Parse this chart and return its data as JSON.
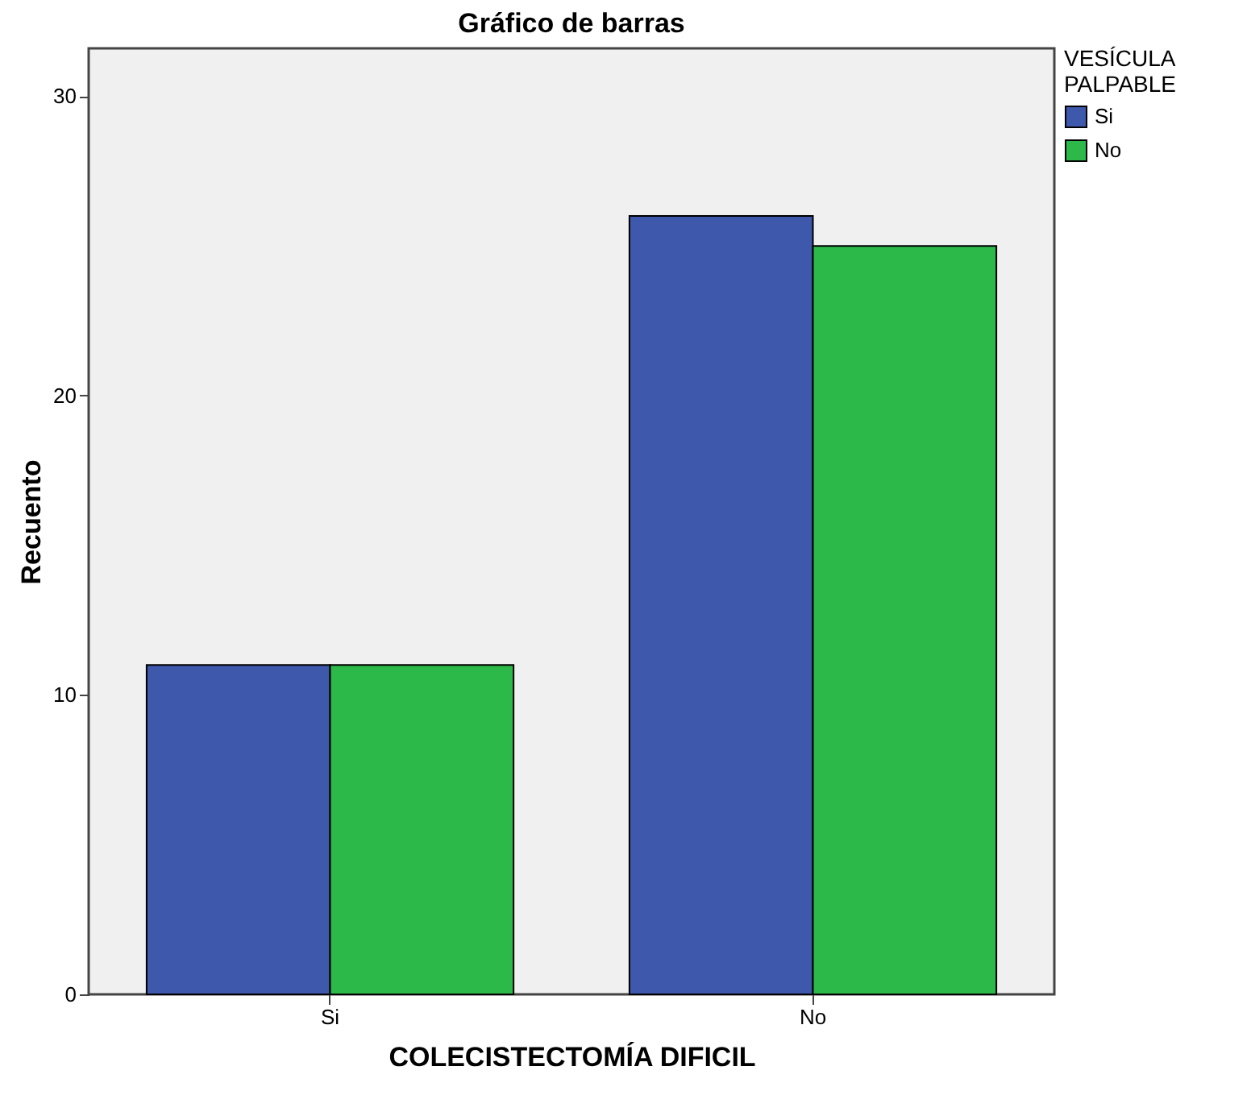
{
  "chart_data": {
    "type": "bar",
    "title": "Gráfico de barras",
    "xlabel": "COLECISTECTOMÍA DIFICIL",
    "ylabel": "Recuento",
    "legend_title": "VESÍCULA PALPABLE",
    "categories": [
      "Si",
      "No"
    ],
    "series": [
      {
        "name": "Si",
        "color": "#3e58ac",
        "values": [
          11,
          26
        ]
      },
      {
        "name": "No",
        "color": "#2db84a",
        "values": [
          11,
          25
        ]
      }
    ],
    "ylim": [
      0,
      31.6
    ],
    "yticks": [
      0,
      10,
      20,
      30
    ],
    "grid": false,
    "legend": "top right"
  }
}
